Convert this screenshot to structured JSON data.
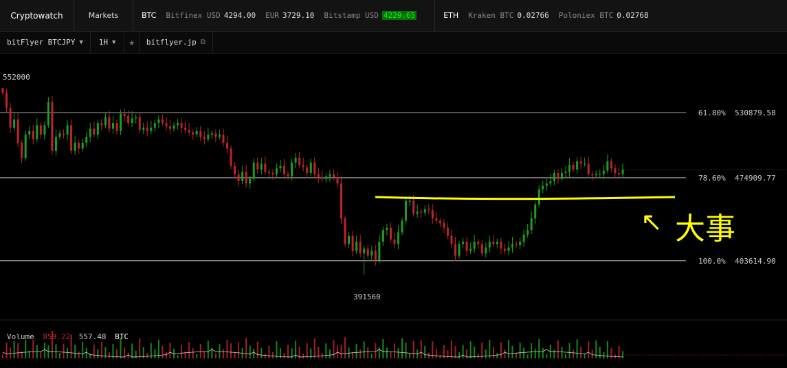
{
  "header": {
    "brand": "Cryptowatch",
    "markets": "Markets",
    "btc": {
      "currency": "BTC",
      "tickers": [
        {
          "exchange": "Bitfinex USD",
          "value": "4294.00"
        },
        {
          "exchange": "EUR",
          "value": "3729.10"
        },
        {
          "exchange": "Bitstamp USD",
          "value": "4229.65",
          "highlight": true
        }
      ]
    },
    "eth": {
      "currency": "ETH",
      "tickers": [
        {
          "exchange": "Kraken BTC",
          "value": "0.02766"
        },
        {
          "exchange": "Poloniex BTC",
          "value": "0.02768"
        }
      ]
    }
  },
  "toolbar": {
    "market": "bitFlyer BTCJPY",
    "interval": "1H",
    "site": "bitflyer.jp"
  },
  "colors": {
    "up": "#1aa01a",
    "down": "#c0242a",
    "annotation": "#ffff00",
    "bg": "#000000"
  },
  "chart_data": {
    "type": "candlestick",
    "price_max_label": "552000",
    "price_min_label": "391560",
    "ylim": [
      387000,
      558000
    ],
    "fib_levels": [
      {
        "pct": "61.80%",
        "price": "530879.58",
        "value": 530879.58
      },
      {
        "pct": "78.60%",
        "price": "474909.77",
        "value": 474909.77
      },
      {
        "pct": "100.0%",
        "price": "403614.90",
        "value": 403614.9
      }
    ],
    "closes": [
      548000,
      535000,
      518000,
      525000,
      505000,
      492000,
      512000,
      515000,
      508000,
      520000,
      512000,
      520000,
      540000,
      498000,
      510000,
      513000,
      512000,
      520000,
      498000,
      505000,
      500000,
      505000,
      510000,
      517000,
      512000,
      522000,
      520000,
      527000,
      517000,
      522000,
      515000,
      530000,
      528000,
      522000,
      526000,
      527000,
      516000,
      518000,
      515000,
      518000,
      522000,
      525000,
      522000,
      519000,
      517000,
      520000,
      522000,
      518000,
      516000,
      514000,
      512000,
      515000,
      510000,
      508000,
      512000,
      513000,
      510000,
      512000,
      505000,
      500000,
      485000,
      478000,
      472000,
      480000,
      470000,
      474000,
      488000,
      482000,
      487000,
      480000,
      479000,
      478000,
      483000,
      485000,
      478000,
      476000,
      488000,
      492000,
      486000,
      484000,
      479000,
      488000,
      478000,
      475000,
      474000,
      476000,
      478000,
      475000,
      470000,
      440000,
      418000,
      425000,
      412000,
      420000,
      410000,
      414000,
      408000,
      412000,
      404000,
      420000,
      430000,
      432000,
      422000,
      418000,
      428000,
      438000,
      455000,
      455000,
      444000,
      446000,
      445000,
      448000,
      447000,
      440000,
      438000,
      436000,
      432000,
      425000,
      418000,
      408000,
      418000,
      420000,
      412000,
      414000,
      420000,
      418000,
      410000,
      415000,
      420000,
      418000,
      420000,
      414000,
      412000,
      415000,
      418000,
      417000,
      420000,
      426000,
      430000,
      440000,
      452000,
      465000,
      468000,
      470000,
      472000,
      479000,
      474000,
      479000,
      480000,
      486000,
      482000,
      489000,
      487000,
      487000,
      478000,
      477000,
      478000,
      478000,
      481000,
      489000,
      483000,
      479000,
      478000,
      482000
    ],
    "volume_label": "Volume",
    "volume_value_red": "859.22",
    "volume_value": "557.48",
    "volume_unit": "BTC",
    "annotation_text": "大事",
    "annotation_arrow": "↖"
  }
}
